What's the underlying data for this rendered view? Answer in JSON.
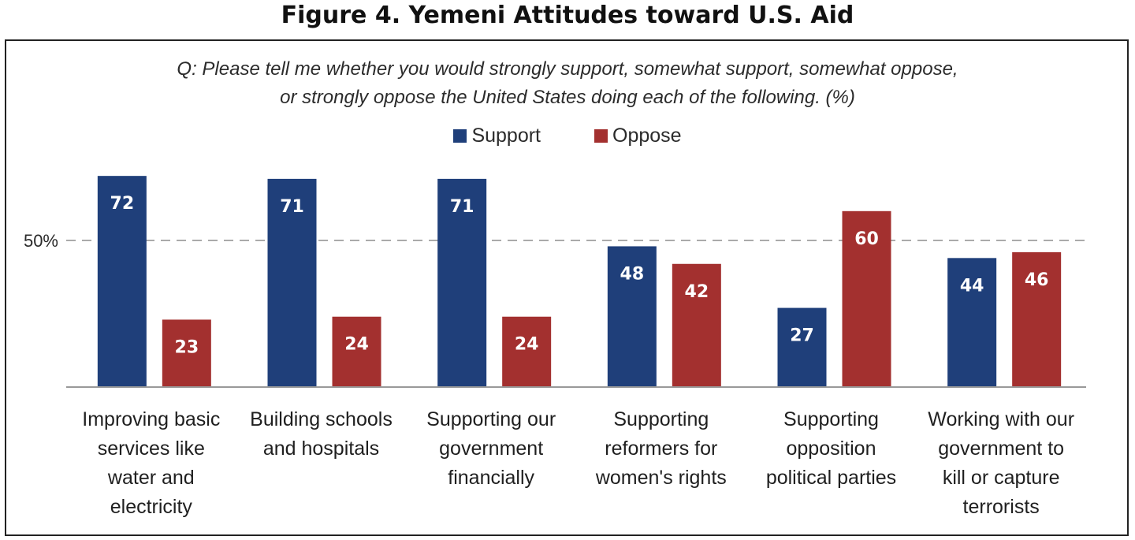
{
  "figure_title": "Figure 4. Yemeni Attitudes toward U.S. Aid",
  "question_lines": [
    "Q: Please tell me whether you would strongly support, somewhat support, somewhat oppose,",
    "or strongly oppose the United States doing each of the following. (%)"
  ],
  "colors": {
    "support": "#1f3f7a",
    "oppose": "#a3302f",
    "reference_line": "#aaaaaa",
    "baseline": "#999999"
  },
  "chart_data": {
    "type": "bar",
    "title": "Figure 4. Yemeni Attitudes toward U.S. Aid",
    "categories": [
      "Improving basic services like water and electricity",
      "Building schools and hospitals",
      "Supporting our government financially",
      "Supporting reformers for women's rights",
      "Supporting opposition political parties",
      "Working with our government to kill or capture terrorists"
    ],
    "category_lines": [
      [
        "Improving basic",
        "services like",
        "water and",
        "electricity"
      ],
      [
        "Building schools",
        "and hospitals"
      ],
      [
        "Supporting our",
        "government",
        "financially"
      ],
      [
        "Supporting",
        "reformers for",
        "women's rights"
      ],
      [
        "Supporting",
        "opposition",
        "political parties"
      ],
      [
        "Working with our",
        "government to",
        "kill or capture",
        "terrorists"
      ]
    ],
    "series": [
      {
        "name": "Support",
        "values": [
          72,
          71,
          71,
          48,
          27,
          44
        ]
      },
      {
        "name": "Oppose",
        "values": [
          23,
          24,
          24,
          42,
          60,
          46
        ]
      }
    ],
    "ylim": [
      0,
      100
    ],
    "reference_line": {
      "value": 50,
      "label": "50%"
    },
    "legend_position": "top-center",
    "grid": false
  }
}
